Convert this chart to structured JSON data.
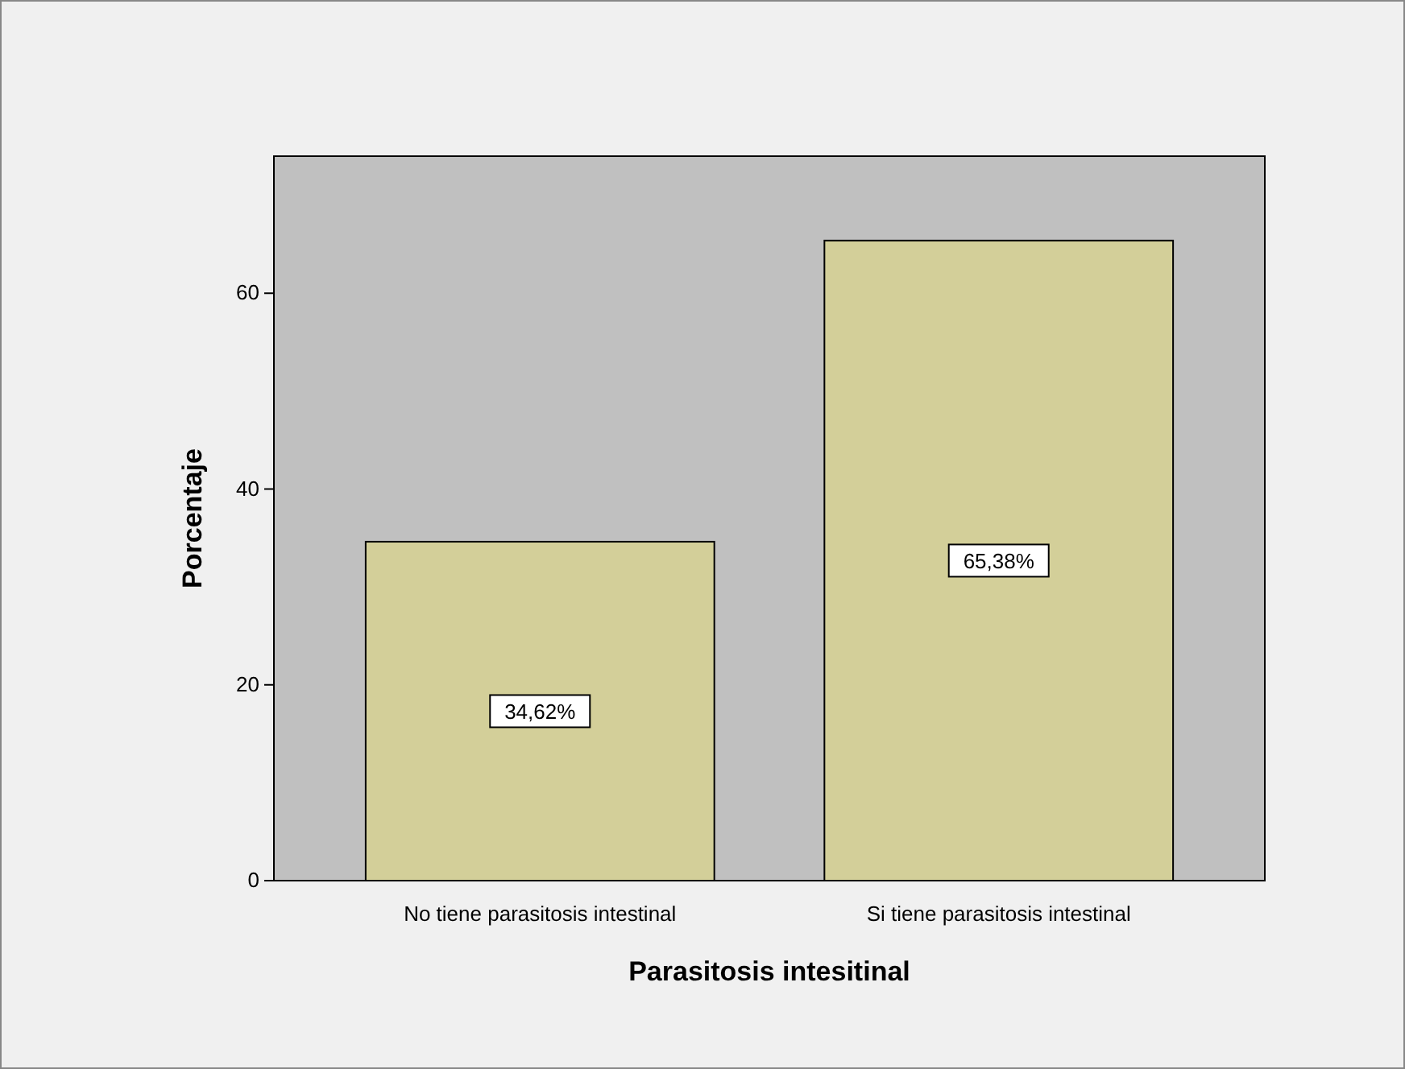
{
  "chart_data": {
    "type": "bar",
    "xlabel": "Parasitosis intesitinal",
    "ylabel": "Porcentaje",
    "categories": [
      "No tiene parasitosis intestinal",
      "Si tiene parasitosis intestinal"
    ],
    "values": [
      34.62,
      65.38
    ],
    "value_labels": [
      "34,62%",
      "65,38%"
    ],
    "color": "#d3cf99",
    "ylim": [
      0,
      74
    ],
    "yticks": [
      0,
      20,
      40,
      60
    ]
  }
}
